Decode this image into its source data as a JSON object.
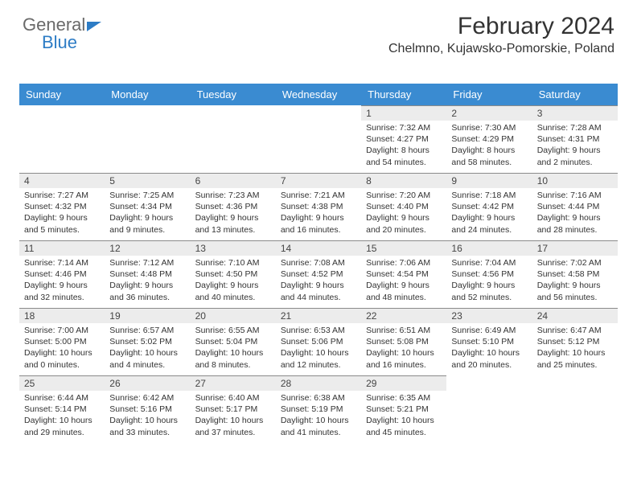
{
  "logo": {
    "text1": "General",
    "text2": "Blue"
  },
  "header": {
    "month_title": "February 2024",
    "location": "Chelmno, Kujawsko-Pomorskie, Poland"
  },
  "colors": {
    "header_bg": "#3a8bd1",
    "header_text": "#ffffff",
    "daynum_bg": "#ececec",
    "daynum_border": "#8a8a8a"
  },
  "weekdays": [
    "Sunday",
    "Monday",
    "Tuesday",
    "Wednesday",
    "Thursday",
    "Friday",
    "Saturday"
  ],
  "weeks": [
    [
      null,
      null,
      null,
      null,
      {
        "n": "1",
        "sunrise": "7:32 AM",
        "sunset": "4:27 PM",
        "day_h": "8",
        "day_m": "54"
      },
      {
        "n": "2",
        "sunrise": "7:30 AM",
        "sunset": "4:29 PM",
        "day_h": "8",
        "day_m": "58"
      },
      {
        "n": "3",
        "sunrise": "7:28 AM",
        "sunset": "4:31 PM",
        "day_h": "9",
        "day_m": "2"
      }
    ],
    [
      {
        "n": "4",
        "sunrise": "7:27 AM",
        "sunset": "4:32 PM",
        "day_h": "9",
        "day_m": "5"
      },
      {
        "n": "5",
        "sunrise": "7:25 AM",
        "sunset": "4:34 PM",
        "day_h": "9",
        "day_m": "9"
      },
      {
        "n": "6",
        "sunrise": "7:23 AM",
        "sunset": "4:36 PM",
        "day_h": "9",
        "day_m": "13"
      },
      {
        "n": "7",
        "sunrise": "7:21 AM",
        "sunset": "4:38 PM",
        "day_h": "9",
        "day_m": "16"
      },
      {
        "n": "8",
        "sunrise": "7:20 AM",
        "sunset": "4:40 PM",
        "day_h": "9",
        "day_m": "20"
      },
      {
        "n": "9",
        "sunrise": "7:18 AM",
        "sunset": "4:42 PM",
        "day_h": "9",
        "day_m": "24"
      },
      {
        "n": "10",
        "sunrise": "7:16 AM",
        "sunset": "4:44 PM",
        "day_h": "9",
        "day_m": "28"
      }
    ],
    [
      {
        "n": "11",
        "sunrise": "7:14 AM",
        "sunset": "4:46 PM",
        "day_h": "9",
        "day_m": "32"
      },
      {
        "n": "12",
        "sunrise": "7:12 AM",
        "sunset": "4:48 PM",
        "day_h": "9",
        "day_m": "36"
      },
      {
        "n": "13",
        "sunrise": "7:10 AM",
        "sunset": "4:50 PM",
        "day_h": "9",
        "day_m": "40"
      },
      {
        "n": "14",
        "sunrise": "7:08 AM",
        "sunset": "4:52 PM",
        "day_h": "9",
        "day_m": "44"
      },
      {
        "n": "15",
        "sunrise": "7:06 AM",
        "sunset": "4:54 PM",
        "day_h": "9",
        "day_m": "48"
      },
      {
        "n": "16",
        "sunrise": "7:04 AM",
        "sunset": "4:56 PM",
        "day_h": "9",
        "day_m": "52"
      },
      {
        "n": "17",
        "sunrise": "7:02 AM",
        "sunset": "4:58 PM",
        "day_h": "9",
        "day_m": "56"
      }
    ],
    [
      {
        "n": "18",
        "sunrise": "7:00 AM",
        "sunset": "5:00 PM",
        "day_h": "10",
        "day_m": "0"
      },
      {
        "n": "19",
        "sunrise": "6:57 AM",
        "sunset": "5:02 PM",
        "day_h": "10",
        "day_m": "4"
      },
      {
        "n": "20",
        "sunrise": "6:55 AM",
        "sunset": "5:04 PM",
        "day_h": "10",
        "day_m": "8"
      },
      {
        "n": "21",
        "sunrise": "6:53 AM",
        "sunset": "5:06 PM",
        "day_h": "10",
        "day_m": "12"
      },
      {
        "n": "22",
        "sunrise": "6:51 AM",
        "sunset": "5:08 PM",
        "day_h": "10",
        "day_m": "16"
      },
      {
        "n": "23",
        "sunrise": "6:49 AM",
        "sunset": "5:10 PM",
        "day_h": "10",
        "day_m": "20"
      },
      {
        "n": "24",
        "sunrise": "6:47 AM",
        "sunset": "5:12 PM",
        "day_h": "10",
        "day_m": "25"
      }
    ],
    [
      {
        "n": "25",
        "sunrise": "6:44 AM",
        "sunset": "5:14 PM",
        "day_h": "10",
        "day_m": "29"
      },
      {
        "n": "26",
        "sunrise": "6:42 AM",
        "sunset": "5:16 PM",
        "day_h": "10",
        "day_m": "33"
      },
      {
        "n": "27",
        "sunrise": "6:40 AM",
        "sunset": "5:17 PM",
        "day_h": "10",
        "day_m": "37"
      },
      {
        "n": "28",
        "sunrise": "6:38 AM",
        "sunset": "5:19 PM",
        "day_h": "10",
        "day_m": "41"
      },
      {
        "n": "29",
        "sunrise": "6:35 AM",
        "sunset": "5:21 PM",
        "day_h": "10",
        "day_m": "45"
      },
      null,
      null
    ]
  ]
}
